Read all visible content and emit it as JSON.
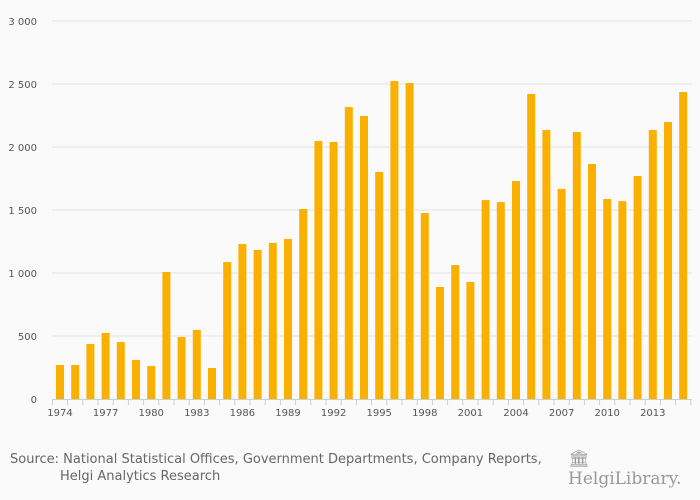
{
  "chart_data": {
    "type": "bar",
    "title": "",
    "xlabel": "",
    "ylabel": "",
    "ylim": [
      0,
      3000
    ],
    "yticks": [
      0,
      500,
      1000,
      1500,
      2000,
      2500,
      3000
    ],
    "ytick_labels": [
      "0",
      "500",
      "1 000",
      "1 500",
      "2 000",
      "2 500",
      "3 000"
    ],
    "xtick_labels": [
      "1974",
      "1977",
      "1980",
      "1983",
      "1986",
      "1989",
      "1992",
      "1995",
      "1998",
      "2001",
      "2004",
      "2007",
      "2010",
      "2013"
    ],
    "grid": true,
    "color": "#f9b000",
    "categories": [
      1974,
      1975,
      1976,
      1977,
      1978,
      1979,
      1980,
      1981,
      1982,
      1983,
      1984,
      1985,
      1986,
      1987,
      1988,
      1989,
      1990,
      1991,
      1992,
      1993,
      1994,
      1995,
      1996,
      1997,
      1998,
      1999,
      2000,
      2001,
      2002,
      2003,
      2004,
      2005,
      2006,
      2007,
      2008,
      2009,
      2010,
      2011,
      2012,
      2013,
      2014,
      2015
    ],
    "values": [
      270,
      270,
      437,
      524,
      452,
      310,
      262,
      1008,
      492,
      548,
      246,
      1087,
      1230,
      1183,
      1238,
      1270,
      1508,
      2048,
      2040,
      2317,
      2246,
      1802,
      2524,
      2508,
      1476,
      889,
      1063,
      929,
      1579,
      1563,
      1730,
      2421,
      2135,
      1667,
      2119,
      1865,
      1587,
      1571,
      1770,
      2135,
      2198,
      2436
    ]
  },
  "footer": {
    "source_line1": "Source: National Statistical Offices, Government Departments, Company Reports,",
    "source_line2": "Helgi Analytics Research",
    "logo_text": "HelgiLibrary."
  }
}
